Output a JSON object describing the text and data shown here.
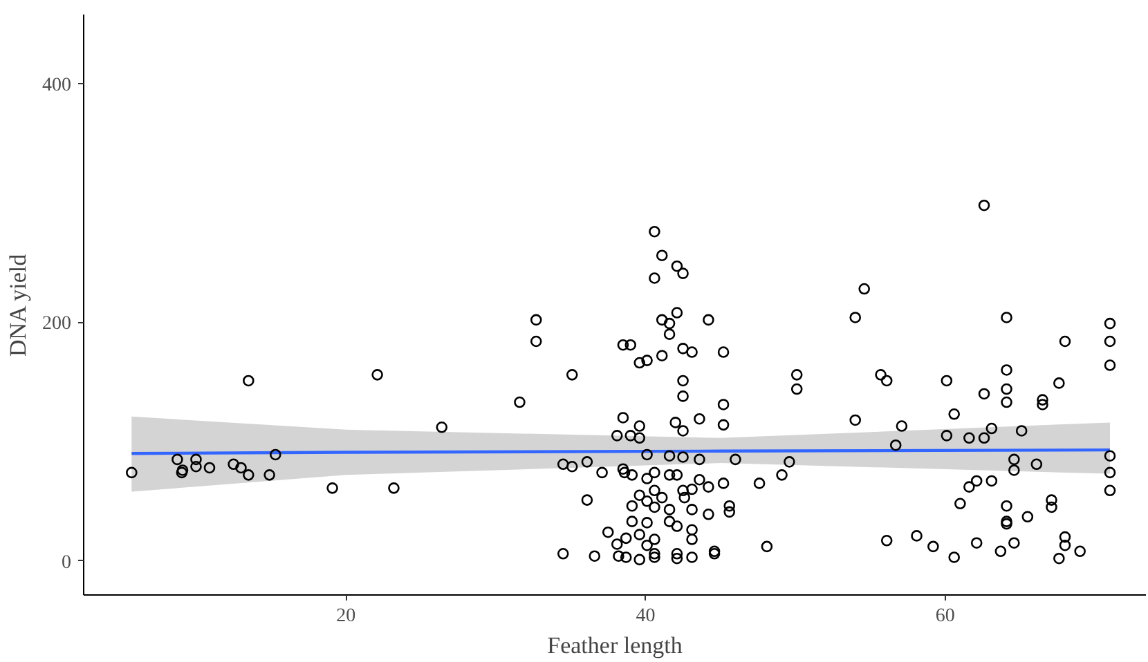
{
  "chart_data": {
    "type": "scatter",
    "xlabel": "Feather length",
    "ylabel": "DNA yield",
    "xlim": [
      2.5,
      73.4
    ],
    "ylim": [
      -28.6,
      458
    ],
    "xticks": [
      20,
      40,
      60
    ],
    "yticks": [
      0,
      200,
      400
    ],
    "grid": false,
    "series": [
      {
        "color": "#000000",
        "marker": "circle",
        "x": [
          5.7,
          8.75,
          9.05,
          9.1,
          10.0,
          10.0,
          10.9,
          12.5,
          13.0,
          13.5,
          13.5,
          14.9,
          15.3,
          19.1,
          22.1,
          23.2,
          26.4,
          31.6,
          32.7,
          32.7,
          34.5,
          34.5,
          35.1,
          35.1,
          36.1,
          36.1,
          36.6,
          37.1,
          37.5,
          38.1,
          38.1,
          38.2,
          38.5,
          38.5,
          38.5,
          38.6,
          38.7,
          38.7,
          39.0,
          39.0,
          39.1,
          39.1,
          39.1,
          39.6,
          39.6,
          39.6,
          39.6,
          39.6,
          39.6,
          40.1,
          40.1,
          40.1,
          40.1,
          40.1,
          40.1,
          40.6,
          40.6,
          40.6,
          40.6,
          40.6,
          40.6,
          40.6,
          40.6,
          41.1,
          41.1,
          41.1,
          41.1,
          41.6,
          41.6,
          41.6,
          41.6,
          41.6,
          41.6,
          42.1,
          42.1,
          42.0,
          42.1,
          42.1,
          42.1,
          42.1,
          42.5,
          42.5,
          42.5,
          42.5,
          42.5,
          42.5,
          42.5,
          42.6,
          43.1,
          43.1,
          43.1,
          43.1,
          43.1,
          43.1,
          43.6,
          43.6,
          43.6,
          44.2,
          44.2,
          44.2,
          44.6,
          44.6,
          45.2,
          45.2,
          45.2,
          45.2,
          45.6,
          45.6,
          46.0,
          47.6,
          48.1,
          49.1,
          49.6,
          50.1,
          50.1,
          54.0,
          54.0,
          54.6,
          55.7,
          56.1,
          56.1,
          56.7,
          57.1,
          58.1,
          59.2,
          60.1,
          60.1,
          60.6,
          60.6,
          61.0,
          61.6,
          61.6,
          62.1,
          62.1,
          62.6,
          62.6,
          62.6,
          63.1,
          63.1,
          63.7,
          64.1,
          64.1,
          64.1,
          64.1,
          64.1,
          64.1,
          64.1,
          64.6,
          64.6,
          64.6,
          65.1,
          65.5,
          66.1,
          66.5,
          66.5,
          67.1,
          67.1,
          67.6,
          67.6,
          68.0,
          68.0,
          68.0,
          69.0,
          71.0,
          71.0,
          71.0,
          71.0,
          71.0,
          71.0
        ],
        "values": [
          74,
          85,
          74,
          76,
          85,
          79,
          78,
          81,
          78,
          151,
          72,
          72,
          89,
          61,
          156,
          61,
          112,
          133,
          202,
          184,
          6,
          81,
          79,
          156,
          83,
          51,
          4,
          74,
          24,
          105,
          14,
          4,
          120,
          181,
          77,
          74,
          19,
          3,
          181,
          105,
          72,
          46,
          33,
          166,
          113,
          103,
          55,
          22,
          1,
          168,
          89,
          69,
          50,
          32,
          13,
          276,
          237,
          74,
          59,
          45,
          18,
          6,
          3,
          256,
          202,
          172,
          53,
          199,
          190,
          88,
          72,
          43,
          33,
          247,
          208,
          116,
          72,
          29,
          6,
          2,
          241,
          178,
          151,
          138,
          109,
          87,
          59,
          53,
          175,
          60,
          43,
          26,
          18,
          3,
          119,
          85,
          68,
          202,
          62,
          39,
          8,
          6,
          175,
          131,
          114,
          65,
          46,
          41,
          85,
          65,
          12,
          72,
          83,
          156,
          144,
          118,
          204,
          228,
          156,
          151,
          17,
          97,
          113,
          21,
          12,
          151,
          105,
          123,
          3,
          48,
          62,
          103,
          67,
          15,
          298,
          140,
          103,
          111,
          67,
          8,
          204,
          160,
          144,
          133,
          46,
          33,
          31,
          85,
          76,
          15,
          109,
          37,
          81,
          135,
          131,
          51,
          45,
          2,
          149,
          184,
          20,
          13,
          8,
          199,
          184,
          164,
          88,
          74,
          59
        ]
      },
      {
        "type": "line",
        "color": "#3366ff",
        "x": [
          5.7,
          20,
          45,
          71
        ],
        "values": [
          90,
          91,
          92,
          93
        ],
        "lower": [
          58,
          72,
          82,
          73
        ],
        "upper": [
          121,
          110,
          103,
          116
        ]
      }
    ]
  }
}
